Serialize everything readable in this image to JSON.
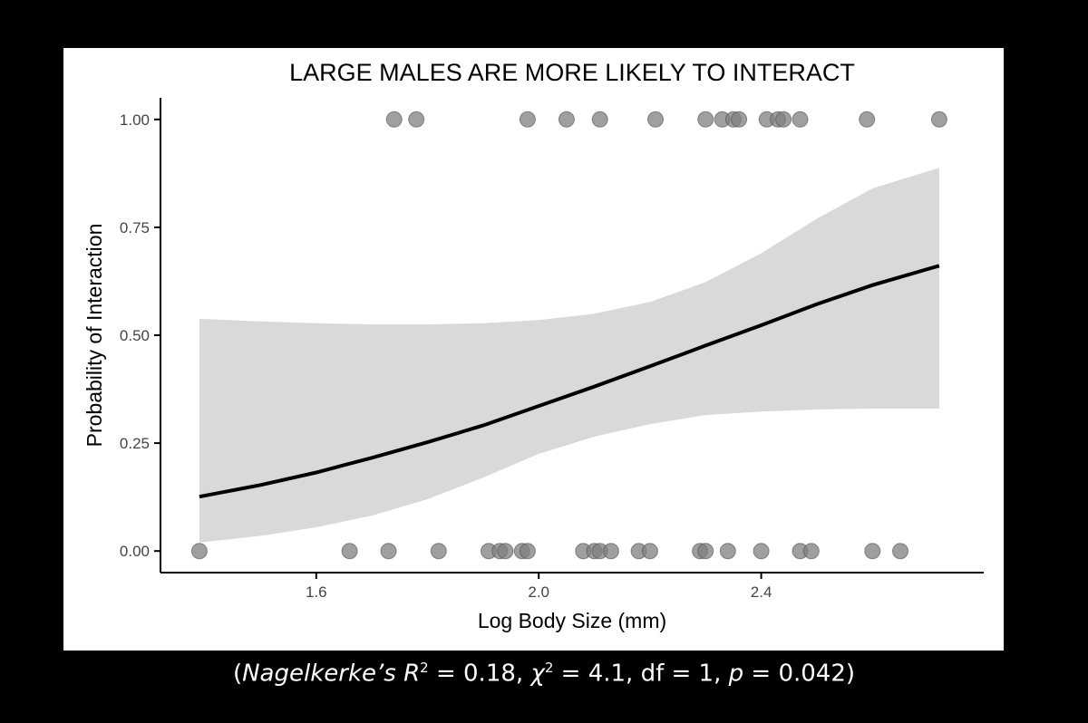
{
  "chart_data": {
    "type": "scatter",
    "title": "LARGE MALES ARE MORE LIKELY TO INTERACT",
    "xlabel": "Log Body Size (mm)",
    "ylabel": "Probability of Interaction",
    "xlim": [
      1.32,
      2.8
    ],
    "ylim": [
      -0.05,
      1.05
    ],
    "x_ticks": [
      1.6,
      2.0,
      2.4
    ],
    "x_tick_labels": [
      "1.6",
      "2.0",
      "2.4"
    ],
    "y_ticks": [
      0,
      0.25,
      0.5,
      0.75,
      1.0
    ],
    "y_tick_labels": [
      "0.00",
      "0.25",
      "0.50",
      "0.75",
      "1.00"
    ],
    "grid": false,
    "legend": "none",
    "colors": {
      "points": "#7f7f7f",
      "fit": "#000000",
      "band": "#d9d9d9"
    },
    "series": [
      {
        "kind": "points",
        "y": 1,
        "x": [
          1.74,
          1.78,
          1.98,
          2.05,
          2.11,
          2.21,
          2.3,
          2.33,
          2.35,
          2.36,
          2.41,
          2.43,
          2.44,
          2.47,
          2.59,
          2.72
        ]
      },
      {
        "kind": "points",
        "y": 0,
        "x": [
          1.39,
          1.66,
          1.73,
          1.82,
          1.91,
          1.93,
          1.94,
          1.97,
          1.98,
          2.08,
          2.1,
          2.11,
          2.13,
          2.18,
          2.2,
          2.29,
          2.3,
          2.34,
          2.4,
          2.47,
          2.49,
          2.6,
          2.65
        ]
      },
      {
        "kind": "fit",
        "x": [
          1.39,
          1.5,
          1.6,
          1.7,
          1.8,
          1.9,
          2.0,
          2.1,
          2.2,
          2.3,
          2.4,
          2.5,
          2.6,
          2.72
        ],
        "y": [
          0.126,
          0.153,
          0.182,
          0.216,
          0.252,
          0.291,
          0.336,
          0.381,
          0.428,
          0.476,
          0.523,
          0.572,
          0.616,
          0.661
        ],
        "lower": [
          0.02,
          0.035,
          0.055,
          0.082,
          0.12,
          0.17,
          0.225,
          0.265,
          0.294,
          0.315,
          0.323,
          0.328,
          0.33,
          0.33
        ],
        "upper": [
          0.538,
          0.532,
          0.528,
          0.525,
          0.525,
          0.528,
          0.535,
          0.55,
          0.577,
          0.623,
          0.69,
          0.77,
          0.84,
          0.888
        ]
      }
    ]
  },
  "caption": {
    "open": "(",
    "name": "Nagelkerke’s R",
    "sup1": "2",
    "part1": " = 0.18, ",
    "chi": "χ",
    "sup2": "2",
    "part2": " = 4.1, df = 1, ",
    "p": "p",
    "part3": " = 0.042)"
  }
}
